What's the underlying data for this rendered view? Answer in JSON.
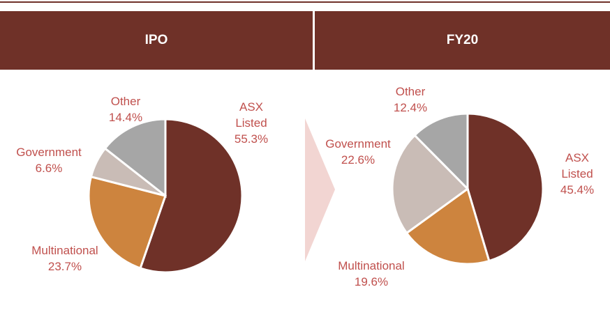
{
  "chart_data": [
    {
      "type": "pie",
      "title": "IPO",
      "categories": [
        "ASX Listed",
        "Multinational",
        "Government",
        "Other"
      ],
      "values": [
        55.3,
        23.7,
        6.6,
        14.4
      ],
      "value_labels": [
        "55.3%",
        "23.7%",
        "6.6%",
        "14.4%"
      ],
      "colors": [
        "#6f3128",
        "#cd843e",
        "#c9bcb6",
        "#a6a6a6"
      ]
    },
    {
      "type": "pie",
      "title": "FY20",
      "categories": [
        "ASX Listed",
        "Multinational",
        "Government",
        "Other"
      ],
      "values": [
        45.4,
        19.6,
        22.6,
        12.4
      ],
      "value_labels": [
        "45.4%",
        "19.6%",
        "22.6%",
        "12.4%"
      ],
      "colors": [
        "#6f3128",
        "#cd843e",
        "#c9bcb6",
        "#a6a6a6"
      ]
    }
  ]
}
